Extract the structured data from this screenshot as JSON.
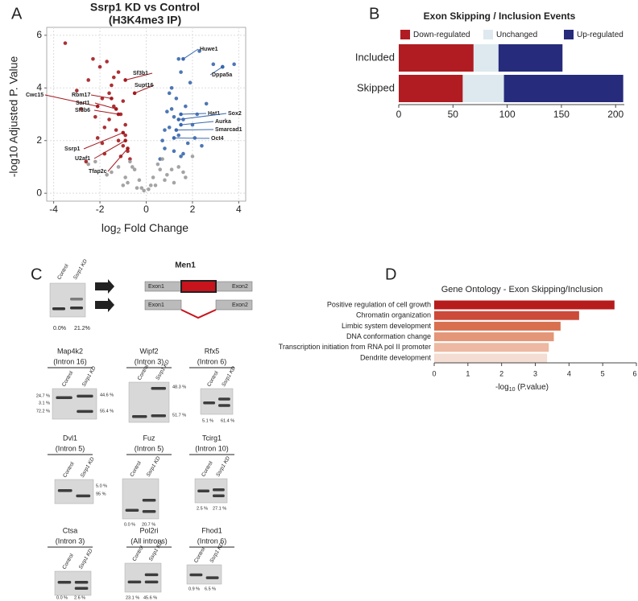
{
  "panel_labels": [
    "A",
    "B",
    "C",
    "D"
  ],
  "chart_data": [
    {
      "type": "scatter",
      "title": "Ssrp1 KD vs Control",
      "subtitle": "(H3K4me3 IP)",
      "xlabel": [
        "log",
        "2",
        " Fold Change"
      ],
      "ylabel": "-log10 Adjusted P. Value",
      "xlim": [
        -4.3,
        4.3
      ],
      "ylim": [
        -0.3,
        6.3
      ],
      "xticks": [
        -4,
        -2,
        0,
        2,
        4
      ],
      "yticks": [
        0,
        2,
        4,
        6
      ],
      "grid": true,
      "series": [
        {
          "color": "#a3191f",
          "x": [
            -3.5,
            -3.0,
            -2.8,
            -2.5,
            -2.3,
            -2.1,
            -2.0,
            -1.9,
            -1.8,
            -1.7,
            -1.6,
            -1.5,
            -1.4,
            -1.3,
            -1.2,
            -1.1,
            -1.0,
            -0.9,
            -0.8,
            -0.7,
            -2.2,
            -1.9,
            -1.6,
            -1.4,
            -1.2,
            -1.0,
            -0.9,
            -2.6,
            -1.8,
            -1.1
          ],
          "values": [
            5.7,
            3.9,
            3.2,
            4.3,
            5.1,
            2.1,
            4.8,
            3.6,
            1.5,
            5.0,
            2.8,
            4.1,
            3.3,
            2.4,
            4.6,
            3.0,
            1.8,
            2.6,
            1.6,
            1.3,
            2.9,
            1.9,
            3.8,
            4.4,
            2.0,
            3.5,
            2.2,
            1.2,
            2.5,
            1.4
          ]
        },
        {
          "color": "#3a68ad",
          "x": [
            0.6,
            0.7,
            0.8,
            0.9,
            1.0,
            1.1,
            1.2,
            1.3,
            1.4,
            1.5,
            1.6,
            1.7,
            1.8,
            1.9,
            2.0,
            2.2,
            2.4,
            2.6,
            2.9,
            3.3,
            3.8,
            1.0,
            1.2,
            1.4,
            1.6,
            0.8,
            1.1,
            1.5,
            2.1,
            2.3
          ],
          "values": [
            1.3,
            2.0,
            1.7,
            3.1,
            2.5,
            4.0,
            1.6,
            3.6,
            2.2,
            4.6,
            2.8,
            3.3,
            1.9,
            4.2,
            2.6,
            3.0,
            1.8,
            3.4,
            4.9,
            4.8,
            4.9,
            3.8,
            2.9,
            5.1,
            1.5,
            2.4,
            3.2,
            1.4,
            2.1,
            5.4
          ]
        },
        {
          "color": "#9a9a9a",
          "x": [
            -0.1,
            0.1,
            -0.3,
            0.3,
            -0.5,
            0.5,
            -0.7,
            0.7,
            -0.9,
            0.9,
            -1.2,
            1.1,
            -1.5,
            1.4,
            -2.2,
            2.0,
            -0.4,
            0.4,
            -0.8,
            0.8,
            -1.0,
            1.2,
            -0.2,
            0.2,
            -1.7,
            -2.5,
            1.7,
            -0.6,
            0.6,
            1.6
          ],
          "values": [
            0.1,
            0.15,
            0.5,
            0.6,
            0.9,
            1.1,
            1.2,
            1.3,
            0.6,
            0.7,
            1.0,
            0.9,
            0.8,
            1.0,
            1.2,
            1.4,
            0.2,
            0.3,
            0.4,
            0.5,
            0.3,
            0.4,
            0.2,
            0.3,
            0.7,
            1.1,
            0.6,
            1.0,
            0.9,
            0.8
          ]
        }
      ],
      "annotations": [
        {
          "label": "Sf3b1",
          "x": -0.9,
          "y": 4.3,
          "color": "#a3191f"
        },
        {
          "label": "Supt16",
          "x": -0.5,
          "y": 3.8,
          "color": "#a3191f"
        },
        {
          "label": "Cwc15",
          "x": -2.1,
          "y": 3.3,
          "color": "#a3191f"
        },
        {
          "label": "Rbm17",
          "x": -1.5,
          "y": 3.6,
          "color": "#a3191f"
        },
        {
          "label": "Sart1",
          "x": -1.3,
          "y": 3.2,
          "color": "#a3191f"
        },
        {
          "label": "Sf3b6",
          "x": -1.2,
          "y": 3.0,
          "color": "#a3191f"
        },
        {
          "label": "Ssrp1",
          "x": -1.0,
          "y": 2.3,
          "color": "#a3191f"
        },
        {
          "label": "U2af1",
          "x": -0.9,
          "y": 2.0,
          "color": "#a3191f"
        },
        {
          "label": "Tfap2c",
          "x": -0.8,
          "y": 1.7,
          "color": "#a3191f"
        },
        {
          "label": "Huwe1",
          "x": 1.6,
          "y": 5.1,
          "color": "#3a68ad"
        },
        {
          "label": "Dppa5a",
          "x": 3.3,
          "y": 4.8,
          "color": "#3a68ad"
        },
        {
          "label": "Hat1",
          "x": 1.5,
          "y": 3.0,
          "color": "#3a68ad"
        },
        {
          "label": "Sox2",
          "x": 1.4,
          "y": 2.8,
          "color": "#3a68ad"
        },
        {
          "label": "Aurka",
          "x": 1.5,
          "y": 2.6,
          "color": "#3a68ad"
        },
        {
          "label": "Smarcad1",
          "x": 1.3,
          "y": 2.4,
          "color": "#3a68ad"
        },
        {
          "label": "Oct4",
          "x": 1.2,
          "y": 2.1,
          "color": "#3a68ad"
        }
      ]
    },
    {
      "type": "bar",
      "orientation": "horizontal",
      "stacked": true,
      "title": "Exon Skipping / Inclusion Events",
      "categories": [
        "Included",
        "Skipped"
      ],
      "xlim": [
        0,
        208
      ],
      "xticks": [
        0,
        50,
        100,
        150,
        200
      ],
      "legend": "top",
      "series": [
        {
          "name": "Down-regulated",
          "color": "#b01c22",
          "values": [
            69,
            59
          ]
        },
        {
          "name": "Unchanged",
          "color": "#dde9ef",
          "values": [
            23,
            38
          ]
        },
        {
          "name": "Up-regulated",
          "color": "#272b7b",
          "values": [
            59,
            110
          ]
        }
      ]
    },
    {
      "type": "bar",
      "orientation": "horizontal",
      "title": "Gene Ontology - Exon Skipping/Inclusion",
      "categories": [
        "Positive regulation of cell growth",
        "Chromatin organization",
        "Limbic system development",
        "DNA conformation change",
        "Transcription initiation from RNA pol II promoter",
        "Dendrite development"
      ],
      "values": [
        5.35,
        4.3,
        3.75,
        3.55,
        3.4,
        3.35
      ],
      "colors": [
        "#b71c1c",
        "#cb4a3a",
        "#d8704f",
        "#e39678",
        "#edb9a2",
        "#f4ddd2"
      ],
      "xlim": [
        0,
        6
      ],
      "xticks": [
        0,
        1,
        2,
        3,
        4,
        5,
        6
      ],
      "xlabel": [
        "-log",
        "10",
        " (P.value)"
      ]
    }
  ],
  "gels": {
    "lanes": [
      "Control",
      "Ssrp1 KD"
    ],
    "men1": {
      "title": "Men1",
      "exons": [
        "Exon1",
        "Exon2"
      ],
      "percentages": [
        "0.0%",
        "21.2%"
      ]
    },
    "items": [
      {
        "gene": "Map4k2",
        "region": "(Intron 16)",
        "percentages": [
          "24.7 %",
          "3.1 %",
          "72.2 %",
          "44.6 %",
          "55.4 %"
        ]
      },
      {
        "gene": "Wipf2",
        "region": "(Intron 3)",
        "percentages": [
          "48.3 %",
          "51.7 %"
        ]
      },
      {
        "gene": "Rfx5",
        "region": "(Intron 6)",
        "percentages": [
          "5.1 %",
          "61.4 %"
        ]
      },
      {
        "gene": "Dvl1",
        "region": "(Intron 5)",
        "percentages": [
          "5.0 %",
          "95 %"
        ]
      },
      {
        "gene": "Fuz",
        "region": "(Intron 5)",
        "percentages": [
          "0.0 %",
          "20.7 %"
        ]
      },
      {
        "gene": "Tcirg1",
        "region": "(Intron 10)",
        "percentages": [
          "2.5 %",
          "27.1 %"
        ]
      },
      {
        "gene": "Ctsa",
        "region": "(Intron 3)",
        "percentages": [
          "0.0 %",
          "2.6 %"
        ]
      },
      {
        "gene": "Pol2ri",
        "region": "(All introns)",
        "percentages": [
          "23.1 %",
          "45.6 %"
        ]
      },
      {
        "gene": "Fhod1",
        "region": "(Intron 6)",
        "percentages": [
          "0.9 %",
          "6.5 %"
        ]
      }
    ]
  }
}
